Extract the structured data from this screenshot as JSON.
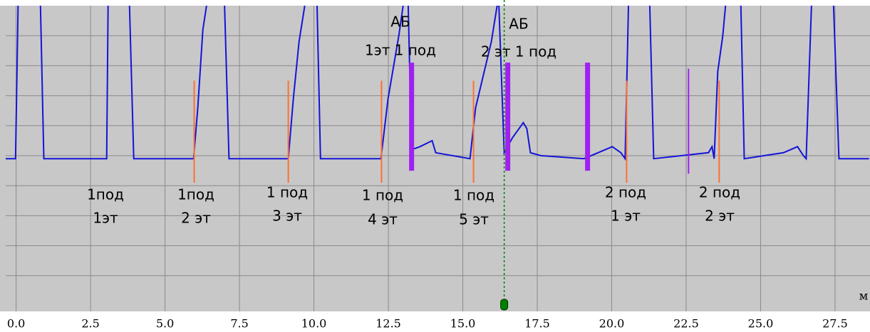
{
  "chart_data": {
    "type": "line",
    "color": "#1414d8",
    "x": [
      -0.35,
      -0.02,
      0.07,
      0.81,
      0.93,
      3.04,
      3.09,
      3.8,
      3.95,
      5.96,
      6.1,
      6.27,
      6.44,
      6.99,
      7.15,
      9.14,
      9.31,
      9.5,
      9.74,
      10.1,
      10.22,
      12.25,
      12.49,
      12.85,
      13.04,
      13.16,
      13.28,
      13.56,
      13.97,
      14.09,
      15.24,
      15.43,
      15.96,
      16.2,
      16.39,
      16.67,
      17.03,
      17.15,
      17.27,
      17.63,
      19.07,
      20.02,
      20.31,
      20.45,
      20.57,
      21.27,
      21.41,
      23.25,
      23.37,
      23.44,
      23.56,
      23.73,
      23.85,
      24.33,
      24.45,
      25.77,
      26.24,
      26.44,
      26.53,
      26.72,
      27.44,
      27.63,
      28.64
    ],
    "values": [
      4.9,
      4.9,
      10.3,
      10.3,
      4.9,
      4.9,
      10.3,
      10.3,
      4.9,
      4.9,
      6.6,
      9.2,
      10.3,
      10.3,
      4.9,
      4.9,
      6.9,
      8.8,
      10.3,
      10.3,
      4.9,
      4.9,
      6.9,
      9.0,
      10.3,
      10.3,
      5.2,
      5.3,
      5.5,
      5.1,
      4.9,
      6.6,
      8.8,
      10.3,
      5.1,
      5.6,
      6.1,
      5.9,
      5.1,
      5.0,
      4.9,
      5.3,
      5.1,
      4.9,
      10.3,
      10.3,
      4.9,
      5.1,
      5.3,
      4.9,
      7.8,
      9.0,
      10.3,
      10.3,
      4.9,
      5.1,
      5.3,
      5.0,
      4.9,
      10.3,
      10.3,
      4.9,
      4.9
    ],
    "xlim": [
      -0.35,
      28.65
    ],
    "ylim": [
      0,
      10
    ],
    "grid": true,
    "xticks": [
      {
        "value": 0,
        "label": "0.0"
      },
      2.5,
      {
        "value": 5,
        "label": "5.0"
      },
      7.5,
      {
        "value": 10,
        "label": "10.0"
      },
      12.5,
      {
        "value": 15,
        "label": "15.0"
      },
      17.5,
      {
        "value": 20,
        "label": "20.0"
      },
      22.5,
      {
        "value": 25,
        "label": "25.0"
      },
      27.5
    ],
    "yticks": [
      1,
      2,
      3,
      4,
      5,
      6,
      7,
      8,
      9
    ],
    "x_label": "м",
    "marks": [
      {
        "color": "#ff7033",
        "x": [
          5.98,
          9.14,
          12.27,
          15.36,
          20.5,
          23.61
        ],
        "range": [
          4.1,
          7.5
        ]
      },
      {
        "color": "#a020f0",
        "x": [
          13.28,
          16.51,
          19.19
        ],
        "range": [
          4.5,
          8.1
        ]
      },
      {
        "color": "#a020f0",
        "x": [
          22.58
        ],
        "range": [
          4.4,
          7.9
        ]
      }
    ],
    "cursor": {
      "x": 16.39,
      "color": "#008000"
    },
    "annotations": [
      [
        "1под",
        "1эт"
      ],
      [
        "1под",
        "2 эт"
      ],
      [
        "1 под",
        "3 эт"
      ],
      [
        "1 под",
        "4 эт"
      ],
      [
        "1 под",
        "5 эт"
      ],
      [
        "2 под",
        "1 эт"
      ],
      [
        "2 под",
        "2 эт"
      ],
      [
        "АБ",
        "1эт 1 под"
      ],
      [
        "АБ",
        "2 эт 1 под"
      ]
    ]
  }
}
